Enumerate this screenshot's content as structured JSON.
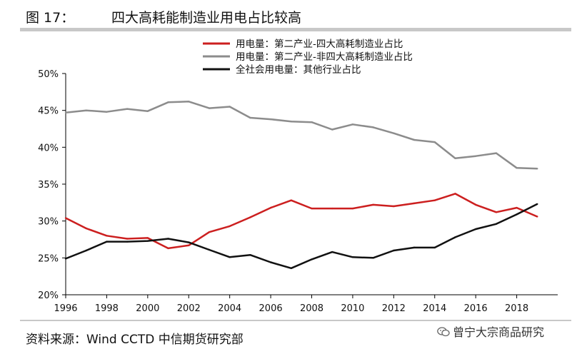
{
  "figure": {
    "label": "图 17：",
    "title": "四大高耗能制造业用电占比较高",
    "source": "资料来源：Wind CCTD 中信期货研究部",
    "watermark": "曾宁大宗商品研究",
    "watermark_icon": "wechat-icon"
  },
  "chart_data": {
    "type": "line",
    "title": "",
    "xlabel": "",
    "ylabel": "",
    "y_unit": "%",
    "ylim": [
      20,
      50
    ],
    "y_ticks": [
      "20%",
      "25%",
      "30%",
      "35%",
      "40%",
      "45%",
      "50%"
    ],
    "xlim": [
      1996,
      2020
    ],
    "x_ticks": [
      "1996",
      "1998",
      "2000",
      "2002",
      "2004",
      "2006",
      "2008",
      "2010",
      "2012",
      "2014",
      "2016",
      "2018"
    ],
    "grid": false,
    "legend_position": "top-right",
    "series": [
      {
        "name": "用电量：第二产业-四大高耗制造业占比",
        "color": "#cc1f1f",
        "x": [
          1996,
          1997,
          1998,
          1999,
          2000,
          2001,
          2002,
          2003,
          2004,
          2005,
          2006,
          2007,
          2008,
          2009,
          2010,
          2011,
          2012,
          2013,
          2014,
          2015,
          2016,
          2017,
          2018,
          2019
        ],
        "values": [
          30.4,
          29.0,
          28.0,
          27.6,
          27.7,
          26.3,
          26.7,
          28.5,
          29.3,
          30.5,
          31.8,
          32.8,
          31.7,
          31.7,
          31.7,
          32.2,
          32.0,
          32.4,
          32.8,
          33.7,
          32.2,
          31.2,
          31.8,
          30.6
        ]
      },
      {
        "name": "用电量：第二产业-非四大高耗制造业占比",
        "color": "#8c8c8c",
        "x": [
          1996,
          1997,
          1998,
          1999,
          2000,
          2001,
          2002,
          2003,
          2004,
          2005,
          2006,
          2007,
          2008,
          2009,
          2010,
          2011,
          2012,
          2013,
          2014,
          2015,
          2016,
          2017,
          2018,
          2019
        ],
        "values": [
          44.7,
          45.0,
          44.8,
          45.2,
          44.9,
          46.1,
          46.2,
          45.3,
          45.5,
          44.0,
          43.8,
          43.5,
          43.4,
          42.4,
          43.1,
          42.7,
          41.9,
          41.0,
          40.7,
          38.5,
          38.8,
          39.2,
          37.2,
          37.1
        ]
      },
      {
        "name": "全社会用电量：其他行业占比",
        "color": "#111111",
        "x": [
          1996,
          1997,
          1998,
          1999,
          2000,
          2001,
          2002,
          2003,
          2004,
          2005,
          2006,
          2007,
          2008,
          2009,
          2010,
          2011,
          2012,
          2013,
          2014,
          2015,
          2016,
          2017,
          2018,
          2019
        ],
        "values": [
          24.9,
          26.0,
          27.2,
          27.2,
          27.3,
          27.6,
          27.1,
          26.1,
          25.1,
          25.4,
          24.4,
          23.6,
          24.8,
          25.8,
          25.1,
          25.0,
          26.0,
          26.4,
          26.4,
          27.8,
          28.9,
          29.6,
          30.9,
          32.3
        ]
      }
    ]
  }
}
